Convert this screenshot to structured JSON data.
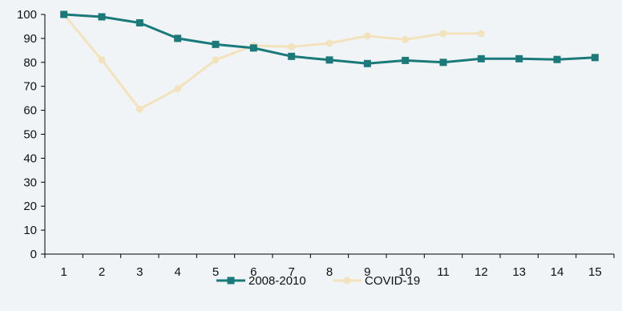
{
  "chart_data": {
    "type": "line",
    "x": [
      1,
      2,
      3,
      4,
      5,
      6,
      7,
      8,
      9,
      10,
      11,
      12,
      13,
      14,
      15
    ],
    "x_tick_labels": [
      "1",
      "2",
      "3",
      "4",
      "5",
      "6",
      "7",
      "8",
      "9",
      "10",
      "11",
      "12",
      "13",
      "14",
      "15"
    ],
    "ylim": [
      0,
      100
    ],
    "y_ticks": [
      0,
      10,
      20,
      30,
      40,
      50,
      60,
      70,
      80,
      90,
      100
    ],
    "y_tick_labels": [
      "0",
      "10",
      "20",
      "30",
      "40",
      "50",
      "60",
      "70",
      "80",
      "90",
      "100"
    ],
    "grid": false,
    "legend_position": "bottom",
    "series": [
      {
        "name": "2008-2010",
        "color": "#1a7a7a",
        "marker": "square",
        "values": [
          100,
          99,
          96.5,
          90,
          87.5,
          86,
          82.5,
          81,
          79.5,
          80.8,
          80,
          81.5,
          81.5,
          81.2,
          82
        ]
      },
      {
        "name": "COVID-19",
        "color": "#f2e3bc",
        "marker": "circle",
        "values": [
          100,
          81,
          60.5,
          69,
          81,
          87,
          86.5,
          88,
          91,
          89.5,
          92,
          92,
          null,
          null,
          null
        ]
      }
    ]
  }
}
